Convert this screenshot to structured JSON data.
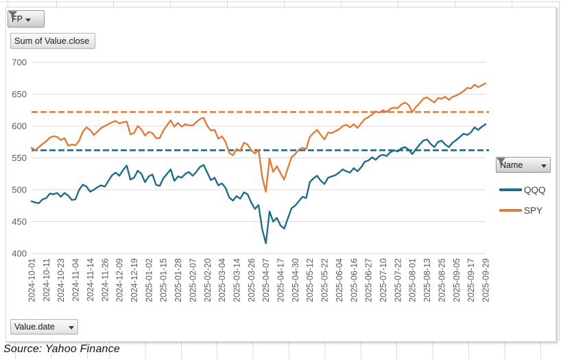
{
  "sheet": {
    "source_note": "Source: Yahoo Finance"
  },
  "chart": {
    "filters": {
      "fp_label": "FP",
      "value_field_label": "Sum of Value.close",
      "axis_field_label": "Value.date",
      "legend_field_label": "Name"
    }
  },
  "chart_data": {
    "type": "line",
    "title": "",
    "xlabel": "Value.date",
    "ylabel": "Sum of Value.close",
    "ylim": [
      400,
      700
    ],
    "y_ticks": [
      400,
      450,
      500,
      550,
      600,
      650,
      700
    ],
    "grid": "horizontal",
    "legend_position": "right",
    "x_tick_labels": [
      "2024-10-01",
      "2024-10-11",
      "2024-10-23",
      "2024-11-04",
      "2024-11-14",
      "2024-11-26",
      "2024-12-09",
      "2024-12-19",
      "2025-01-02",
      "2025-01-15",
      "2025-01-28",
      "2025-02-07",
      "2025-02-20",
      "2025-03-04",
      "2025-03-14",
      "2025-03-26",
      "2025-04-07",
      "2025-04-17",
      "2025-04-30",
      "2025-05-12",
      "2025-05-22",
      "2025-06-04",
      "2025-06-16",
      "2025-06-27",
      "2025-07-10",
      "2025-07-22",
      "2025-08-01",
      "2025-08-13",
      "2025-08-25",
      "2025-09-05",
      "2025-09-17",
      "2025-09-29"
    ],
    "series": [
      {
        "name": "QQQ",
        "color": "#1F6B8C",
        "values": [
          482,
          480,
          479,
          485,
          487,
          494,
          493,
          495,
          489,
          495,
          491,
          484,
          485,
          500,
          508,
          505,
          497,
          500,
          504,
          507,
          505,
          514,
          523,
          527,
          522,
          531,
          538,
          516,
          519,
          530,
          525,
          512,
          521,
          524,
          508,
          506,
          518,
          525,
          532,
          514,
          521,
          519,
          525,
          528,
          522,
          528,
          536,
          539,
          527,
          515,
          519,
          507,
          510,
          503,
          488,
          483,
          490,
          486,
          496,
          493,
          480,
          470,
          476,
          438,
          416,
          466,
          450,
          456,
          444,
          439,
          455,
          471,
          475,
          482,
          489,
          487,
          512,
          518,
          522,
          514,
          509,
          519,
          521,
          523,
          527,
          532,
          529,
          527,
          534,
          529,
          535,
          544,
          546,
          551,
          547,
          553,
          555,
          553,
          559,
          562,
          560,
          565,
          567,
          563,
          556,
          564,
          571,
          577,
          579,
          572,
          567,
          575,
          577,
          571,
          567,
          574,
          578,
          583,
          588,
          586,
          590,
          598,
          594,
          599,
          603
        ]
      },
      {
        "name": "SPY",
        "color": "#E07B39",
        "values": [
          566,
          562,
          567,
          572,
          576,
          582,
          584,
          583,
          578,
          581,
          569,
          571,
          570,
          577,
          591,
          598,
          594,
          586,
          591,
          597,
          600,
          603,
          606,
          608,
          604,
          606,
          607,
          587,
          589,
          600,
          595,
          585,
          591,
          589,
          581,
          581,
          593,
          601,
          609,
          599,
          605,
          599,
          603,
          601,
          601,
          606,
          611,
          613,
          600,
          593,
          594,
          580,
          584,
          575,
          558,
          554,
          564,
          561,
          574,
          571,
          562,
          557,
          563,
          520,
          497,
          549,
          528,
          537,
          526,
          516,
          534,
          551,
          556,
          563,
          566,
          564,
          583,
          589,
          594,
          586,
          579,
          590,
          589,
          592,
          595,
          600,
          602,
          598,
          603,
          597,
          604,
          611,
          614,
          618,
          623,
          621,
          625,
          622,
          627,
          629,
          628,
          634,
          637,
          633,
          622,
          630,
          636,
          643,
          645,
          641,
          637,
          644,
          643,
          646,
          641,
          646,
          648,
          651,
          655,
          660,
          659,
          665,
          661,
          664,
          667
        ]
      }
    ],
    "reference_lines": [
      {
        "series": "QQQ",
        "value": 562,
        "color": "#1F6B8C",
        "style": "dashed"
      },
      {
        "series": "SPY",
        "value": 622,
        "color": "#E07B39",
        "style": "dashed"
      }
    ]
  }
}
